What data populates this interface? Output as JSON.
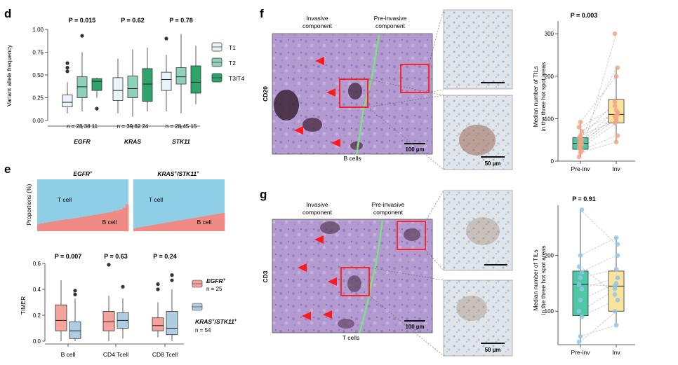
{
  "panels": {
    "d": {
      "letter": "d",
      "ylabel": "Variant allele frequency",
      "yticks": [
        "0.00",
        "0.25",
        "0.50",
        "0.75",
        "1.00"
      ],
      "legend": [
        "T1",
        "T2",
        "T3/T4"
      ],
      "colors": {
        "T1": "#e8f4f8",
        "T2": "#8ed1b8",
        "T3/T4": "#2ea36a"
      },
      "chart_data": {
        "type": "box",
        "ylim": [
          0,
          1.0
        ],
        "groups": [
          {
            "gene": "EGFR",
            "p": "P = 0.015",
            "n_text": "n = 28 38 11",
            "boxes": [
              {
                "stage": "T1",
                "min": 0.08,
                "q1": 0.15,
                "median": 0.2,
                "q3": 0.28,
                "max": 0.42,
                "outliers": [
                  0.54,
                  0.58,
                  0.63
                ]
              },
              {
                "stage": "T2",
                "min": 0.1,
                "q1": 0.25,
                "median": 0.37,
                "q3": 0.48,
                "max": 0.75,
                "outliers": [
                  0.93
                ]
              },
              {
                "stage": "T3/T4",
                "min": 0.25,
                "q1": 0.33,
                "median": 0.43,
                "q3": 0.46,
                "max": 0.47,
                "outliers": [
                  0.13
                ]
              }
            ]
          },
          {
            "gene": "KRAS",
            "p": "P = 0.62",
            "n_text": "n = 39 82 24",
            "boxes": [
              {
                "stage": "T1",
                "min": 0.08,
                "q1": 0.22,
                "median": 0.33,
                "q3": 0.47,
                "max": 0.68,
                "outliers": []
              },
              {
                "stage": "T2",
                "min": 0.04,
                "q1": 0.25,
                "median": 0.35,
                "q3": 0.49,
                "max": 0.78,
                "outliers": []
              },
              {
                "stage": "T3/T4",
                "min": 0.1,
                "q1": 0.21,
                "median": 0.4,
                "q3": 0.57,
                "max": 0.8,
                "outliers": []
              }
            ]
          },
          {
            "gene": "STK11",
            "p": "P = 0.78",
            "n_text": "n = 28 45 15",
            "boxes": [
              {
                "stage": "T1",
                "min": 0.1,
                "q1": 0.33,
                "median": 0.45,
                "q3": 0.53,
                "max": 0.72,
                "outliers": [
                  0.9
                ]
              },
              {
                "stage": "T2",
                "min": 0.08,
                "q1": 0.4,
                "median": 0.48,
                "q3": 0.58,
                "max": 0.95,
                "outliers": []
              },
              {
                "stage": "T3/T4",
                "min": 0.18,
                "q1": 0.3,
                "median": 0.42,
                "q3": 0.6,
                "max": 0.82,
                "outliers": []
              }
            ]
          }
        ]
      }
    },
    "e": {
      "letter": "e",
      "top_ylabel": "Proportions (%)",
      "egfr_title": "EGFR",
      "egfr_sup": "+",
      "kras_title": "KRAS",
      "kras_sup1": "+",
      "kras_title2": "/STK11",
      "kras_sup2": "+",
      "tcell_label": "T cell",
      "bcell_label": "B cell",
      "colors": {
        "tcell": "#8ecfe6",
        "bcell": "#f08a84",
        "egfr_box": "#f4a49c",
        "kras_box": "#aecde0"
      },
      "proportions": {
        "egfr_bcell": [
          0.13,
          0.15,
          0.16,
          0.17,
          0.18,
          0.19,
          0.2,
          0.21,
          0.22,
          0.23,
          0.23,
          0.24,
          0.25,
          0.26,
          0.27,
          0.28,
          0.29,
          0.3,
          0.31,
          0.32,
          0.33,
          0.34,
          0.35,
          0.36,
          0.37,
          0.39,
          0.4,
          0.42,
          0.45,
          0.52
        ],
        "kras_bcell": [
          0.05,
          0.07,
          0.08,
          0.09,
          0.1,
          0.11,
          0.12,
          0.13,
          0.14,
          0.15,
          0.16,
          0.17,
          0.18,
          0.19,
          0.2,
          0.21,
          0.22,
          0.23,
          0.24,
          0.25,
          0.26,
          0.27,
          0.28,
          0.29,
          0.3,
          0.31,
          0.32,
          0.33,
          0.34,
          0.35
        ]
      },
      "bottom_ylabel": "TIMER",
      "yticks": [
        "0.0",
        "0.2",
        "0.4",
        "0.6"
      ],
      "legend": {
        "egfr_name": "EGFR",
        "egfr_sup": "+",
        "egfr_n": "n = 25",
        "kras_name": "KRAS",
        "kras_sup1": "+",
        "kras_name2": "/STK11",
        "kras_sup2": "+",
        "kras_n": "n = 54"
      },
      "chart_data": {
        "type": "box",
        "ylim": [
          0,
          0.6
        ],
        "groups": [
          {
            "cell": "B cell",
            "p": "P = 0.007",
            "boxes": [
              {
                "group": "EGFR+",
                "min": 0.0,
                "q1": 0.08,
                "median": 0.16,
                "q3": 0.28,
                "max": 0.47,
                "outliers": []
              },
              {
                "group": "KRAS+/STK11+",
                "min": 0.0,
                "q1": 0.02,
                "median": 0.08,
                "q3": 0.15,
                "max": 0.33,
                "outliers": [
                  0.36,
                  0.39
                ]
              }
            ]
          },
          {
            "cell": "CD4 Tcell",
            "p": "P = 0.63",
            "boxes": [
              {
                "group": "EGFR+",
                "min": 0.0,
                "q1": 0.08,
                "median": 0.15,
                "q3": 0.23,
                "max": 0.35,
                "outliers": [
                  0.59
                ]
              },
              {
                "group": "KRAS+/STK11+",
                "min": 0.02,
                "q1": 0.1,
                "median": 0.16,
                "q3": 0.22,
                "max": 0.33,
                "outliers": [
                  0.42
                ]
              }
            ]
          },
          {
            "cell": "CD8 Tcell",
            "p": "P = 0.24",
            "boxes": [
              {
                "group": "EGFR+",
                "min": 0.03,
                "q1": 0.08,
                "median": 0.12,
                "q3": 0.18,
                "max": 0.3,
                "outliers": [
                  0.4,
                  0.44
                ]
              },
              {
                "group": "KRAS+/STK11+",
                "min": 0.0,
                "q1": 0.05,
                "median": 0.1,
                "q3": 0.23,
                "max": 0.4,
                "outliers": [
                  0.47,
                  0.51
                ]
              }
            ]
          }
        ]
      }
    },
    "f": {
      "letter": "f",
      "invasive_label": "Invasive\ncomponent",
      "preinvasive_label": "Pre-invasive\ncomponent",
      "stain_label": "CD20",
      "cells_label": "B cells",
      "scalebar_main": "100 µm",
      "scalebar_zoom": "50 µm",
      "p": "P = 0.003",
      "ylabel": [
        "Median number of TILs",
        "in the three hot spot areas"
      ],
      "yticks": [
        "0",
        "100",
        "200",
        "300"
      ],
      "xlabels": [
        "Pre-inv",
        "Inv"
      ],
      "colors": {
        "preinv_box": "#50c8a8",
        "inv_box": "#fae39a",
        "preinv_pts": "#f3a486",
        "inv_pts": "#f3a486"
      },
      "chart_data": {
        "type": "box",
        "ylim": [
          0,
          330
        ],
        "boxes": [
          {
            "group": "Pre-inv",
            "min": 10,
            "q1": 28,
            "median": 42,
            "q3": 55,
            "max": 92
          },
          {
            "group": "Inv",
            "min": 45,
            "q1": 90,
            "median": 110,
            "q3": 145,
            "max": 222
          }
        ],
        "pairs": [
          [
            10,
            300
          ],
          [
            20,
            45
          ],
          [
            25,
            60
          ],
          [
            30,
            90
          ],
          [
            35,
            100
          ],
          [
            40,
            110
          ],
          [
            42,
            105
          ],
          [
            45,
            120
          ],
          [
            50,
            220
          ],
          [
            55,
            140
          ],
          [
            60,
            95
          ],
          [
            70,
            115
          ],
          [
            80,
            130
          ],
          [
            92,
            200
          ]
        ]
      }
    },
    "g": {
      "letter": "g",
      "invasive_label": "Invasive\ncomponent",
      "preinvasive_label": "Pre-invasive\ncomponent",
      "stain_label": "CD3",
      "cells_label": "T cells",
      "scalebar_main": "100 µm",
      "scalebar_zoom": "50 µm",
      "p": "P = 0.91",
      "ylabel": [
        "Median number of TILs",
        "in the three hot spot areas"
      ],
      "yticks": [
        "100",
        "200"
      ],
      "xlabels": [
        "Pre-inv",
        "Inv"
      ],
      "colors": {
        "preinv_box": "#50c8a8",
        "inv_box": "#fae39a",
        "pts": "#8fc5ec"
      },
      "chart_data": {
        "type": "box",
        "ylim": [
          40,
          290
        ],
        "boxes": [
          {
            "group": "Pre-inv",
            "min": 45,
            "q1": 92,
            "median": 148,
            "q3": 172,
            "max": 282
          },
          {
            "group": "Inv",
            "min": 75,
            "q1": 100,
            "median": 145,
            "q3": 172,
            "max": 232
          }
        ],
        "pairs": [
          [
            45,
            100
          ],
          [
            55,
            75
          ],
          [
            90,
            120
          ],
          [
            100,
            140
          ],
          [
            120,
            150
          ],
          [
            140,
            160
          ],
          [
            148,
            145
          ],
          [
            160,
            175
          ],
          [
            170,
            200
          ],
          [
            180,
            130
          ],
          [
            200,
            232
          ],
          [
            282,
            220
          ]
        ]
      }
    }
  }
}
